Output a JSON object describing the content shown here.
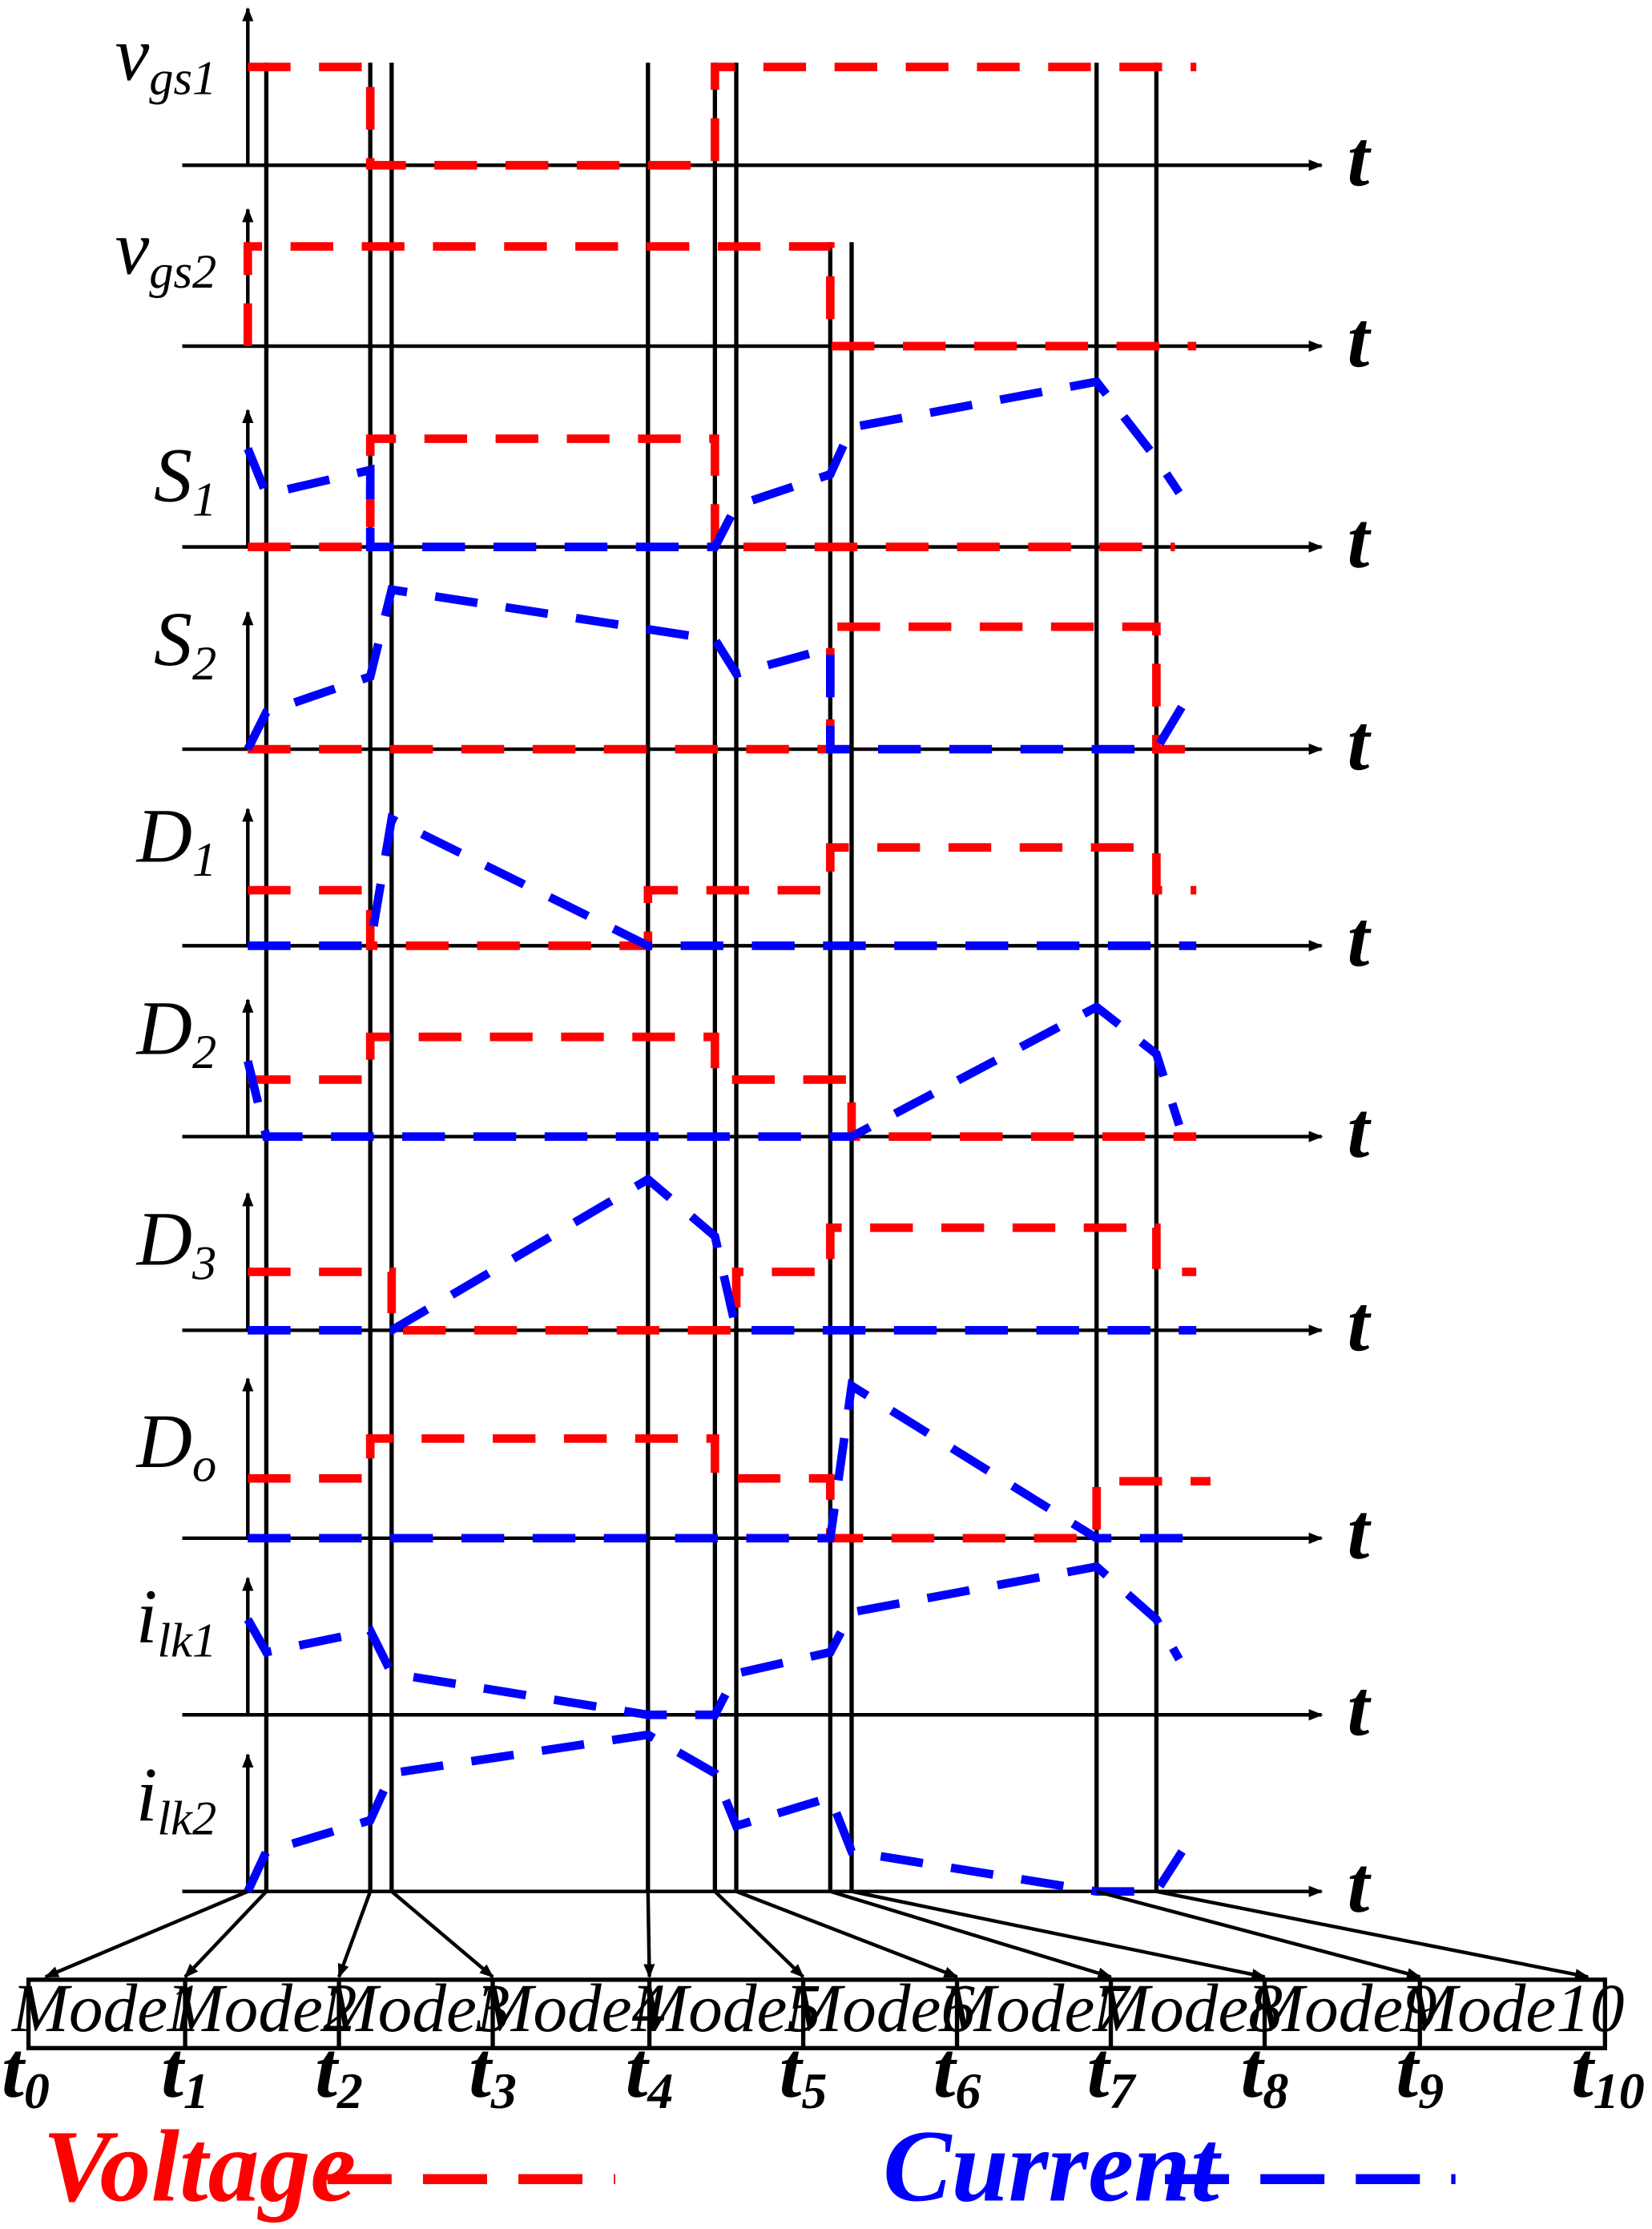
{
  "axis_symbol": "t",
  "signals": [
    {
      "id": "vgs1",
      "base": "v",
      "sub": "gs1"
    },
    {
      "id": "vgs2",
      "base": "v",
      "sub": "gs2"
    },
    {
      "id": "S1",
      "base": "S",
      "sub": "1"
    },
    {
      "id": "S2",
      "base": "S",
      "sub": "2"
    },
    {
      "id": "D1",
      "base": "D",
      "sub": "1"
    },
    {
      "id": "D2",
      "base": "D",
      "sub": "2"
    },
    {
      "id": "D3",
      "base": "D",
      "sub": "3"
    },
    {
      "id": "Do",
      "base": "D",
      "sub": "o"
    },
    {
      "id": "ilk1",
      "base": "i",
      "sub": "lk1"
    },
    {
      "id": "ilk2",
      "base": "i",
      "sub": "lk2"
    }
  ],
  "modes": [
    "Mode1",
    "Mode2",
    "Mode3",
    "Mode4",
    "Mode5",
    "Mode6",
    "Mode7",
    "Mode8",
    "Mode9",
    "Mode10"
  ],
  "time_ticks": [
    {
      "base": "t",
      "sub": "0"
    },
    {
      "base": "t",
      "sub": "1"
    },
    {
      "base": "t",
      "sub": "2"
    },
    {
      "base": "t",
      "sub": "3"
    },
    {
      "base": "t",
      "sub": "4"
    },
    {
      "base": "t",
      "sub": "5"
    },
    {
      "base": "t",
      "sub": "6"
    },
    {
      "base": "t",
      "sub": "7"
    },
    {
      "base": "t",
      "sub": "8"
    },
    {
      "base": "t",
      "sub": "9"
    },
    {
      "base": "t",
      "sub": "10"
    }
  ],
  "legend": {
    "voltage_label": "Voltage",
    "current_label": "Current"
  },
  "colors": {
    "voltage": "#ff0000",
    "current": "#0000ff",
    "axis": "#000000"
  }
}
